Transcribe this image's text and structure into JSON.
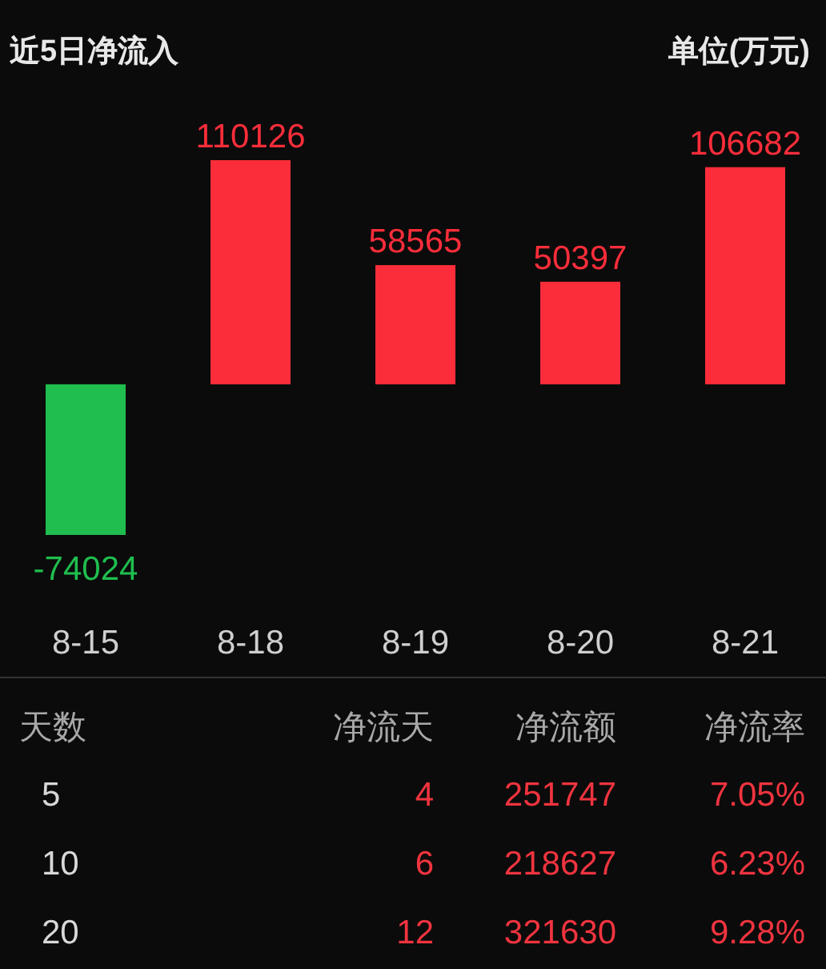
{
  "chart_data": [
    {
      "type": "bar",
      "title": "近5日净流入",
      "annotations": [
        "单位(万元)"
      ],
      "categories": [
        "8-15",
        "8-18",
        "8-19",
        "8-20",
        "8-21"
      ],
      "values": [
        -74024,
        110126,
        58565,
        50397,
        106682
      ],
      "colors": [
        "#1fbe4e",
        "#fb2d3a",
        "#fb2d3a",
        "#fb2d3a",
        "#fb2d3a"
      ],
      "data_labels": true
    },
    {
      "type": "other",
      "categories": [
        "天数",
        "净流天",
        "净流额",
        "净流率"
      ],
      "annotations": [
        "5",
        "4",
        "251747",
        "7.05%",
        "10",
        "6",
        "218627",
        "6.23%",
        "20",
        "12",
        "321630",
        "9.28%"
      ]
    }
  ]
}
